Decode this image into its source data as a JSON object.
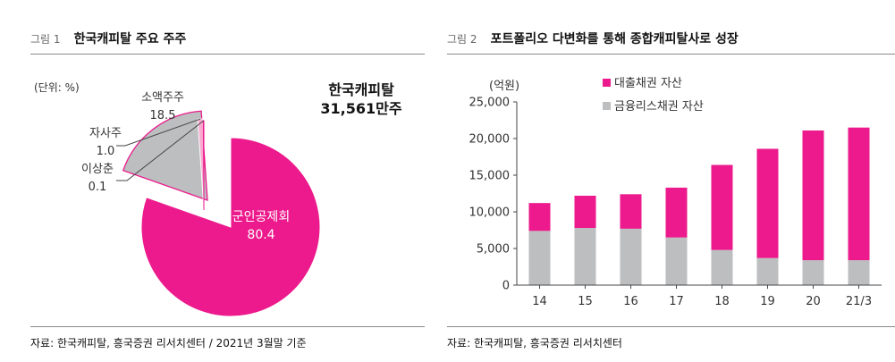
{
  "figures": [
    {
      "number": "그림 1",
      "title": "한국캐피탈 주요 주주",
      "source": "자료: 한국캐피탈, 흥국증권 리서치센터 / 2021년 3월말 기준",
      "callout": [
        "한국캐피탈",
        "31,561만주"
      ]
    },
    {
      "number": "그림 2",
      "title": "포트폴리오 다변화를 통해 종합캐피탈사로 성장",
      "source": "자료: 한국캐피탈, 흥국증권 리서치센터"
    }
  ],
  "colors": {
    "pink": "#ec1a8c",
    "gray": "#bcbec0",
    "pink_light": "#f7a9d0"
  },
  "chart_data": [
    {
      "type": "pie",
      "unit_label": "(단위: %)",
      "slices": [
        {
          "label": "군인공제회",
          "value": 80.4,
          "value_text": "80.4",
          "color": "#ec1a8c"
        },
        {
          "label": "소액주주",
          "value": 18.5,
          "value_text": "18.5",
          "color": "#bcbec0"
        },
        {
          "label": "자사주",
          "value": 1.0,
          "value_text": "1.0",
          "color": "#f7a9d0"
        },
        {
          "label": "이상춘",
          "value": 0.1,
          "value_text": "0.1",
          "color": "#ec1a8c"
        }
      ]
    },
    {
      "type": "bar",
      "stacked": true,
      "ylabel": "(억원)",
      "categories": [
        "14",
        "15",
        "16",
        "17",
        "18",
        "19",
        "20",
        "21/3"
      ],
      "ylim": [
        0,
        25000
      ],
      "yticks": [
        0,
        5000,
        10000,
        15000,
        20000,
        25000
      ],
      "ytick_labels": [
        "0",
        "5,000",
        "10,000",
        "15,000",
        "20,000",
        "25,000"
      ],
      "legend_position": "top",
      "series": [
        {
          "name": "금융리스채권 자산",
          "color": "#bcbec0",
          "values": [
            7400,
            7800,
            7700,
            6500,
            4800,
            3700,
            3400,
            3400
          ]
        },
        {
          "name": "대출채권 자산",
          "color": "#ec1a8c",
          "values": [
            3800,
            4400,
            4700,
            6800,
            11600,
            14900,
            17700,
            18100
          ]
        }
      ]
    }
  ]
}
